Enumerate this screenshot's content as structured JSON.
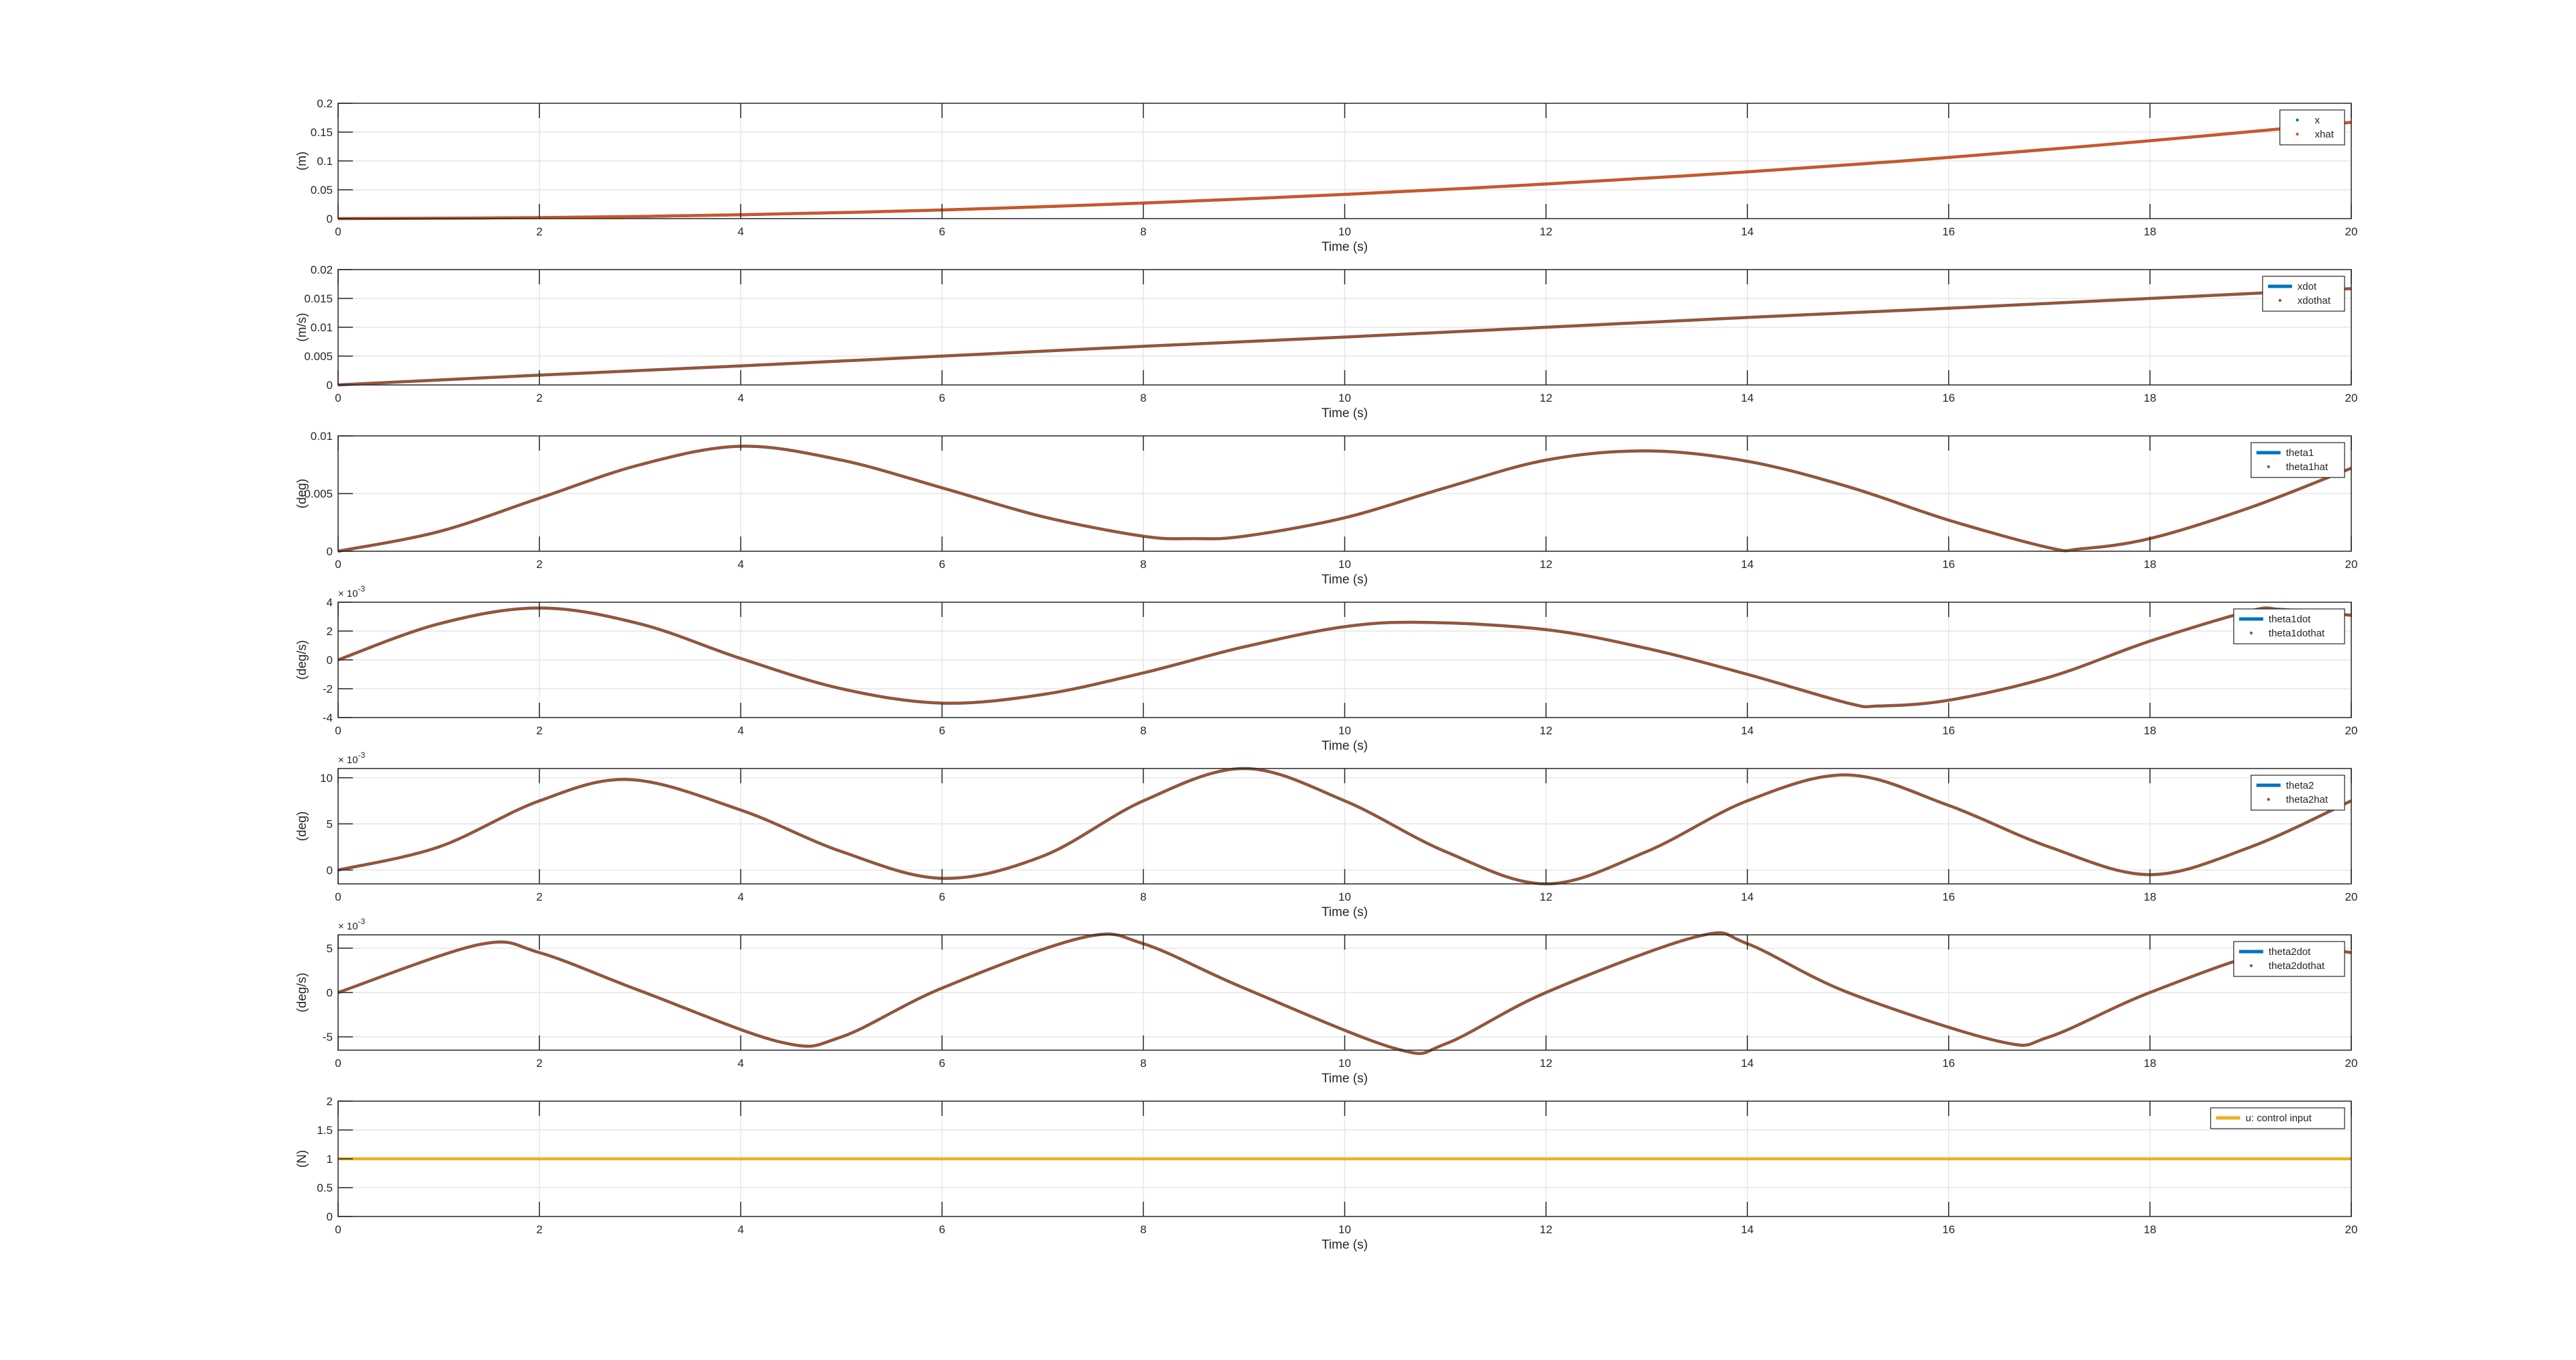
{
  "figure": {
    "background": "#ffffff",
    "grid": true,
    "legend_placement": "top-right"
  },
  "colors": {
    "blue": "#0072BD",
    "orange": "#D95319",
    "yellow": "#EDB120",
    "estimate": "#A0522D"
  },
  "chart_data": [
    {
      "type": "line",
      "xlabel": "Time (s)",
      "ylabel": "(m)",
      "exponent": "",
      "xlim": [
        0,
        20
      ],
      "ylim": [
        0,
        0.2
      ],
      "xticks": [
        "0",
        "2",
        "4",
        "6",
        "8",
        "10",
        "12",
        "14",
        "16",
        "18",
        "20"
      ],
      "yticks": [
        {
          "v": 0,
          "label": "0"
        },
        {
          "v": 0.05,
          "label": "0.05"
        },
        {
          "v": 0.1,
          "label": "0.1"
        },
        {
          "v": 0.15,
          "label": "0.15"
        },
        {
          "v": 0.2,
          "label": "0.2"
        }
      ],
      "x": [
        0,
        2,
        4,
        6,
        8,
        10,
        12,
        14,
        16,
        18,
        20
      ],
      "series": [
        {
          "name": "x",
          "color": "#0072BD",
          "style": "line",
          "values": [
            0,
            0.0017,
            0.0067,
            0.015,
            0.027,
            0.042,
            0.06,
            0.081,
            0.106,
            0.135,
            0.167
          ]
        },
        {
          "name": "xhat",
          "color": "#D95319",
          "style": "line",
          "values": [
            0,
            0.0017,
            0.0067,
            0.015,
            0.027,
            0.042,
            0.06,
            0.081,
            0.106,
            0.135,
            0.167
          ]
        }
      ],
      "legend_marks": [
        "dot",
        "dot"
      ]
    },
    {
      "type": "line",
      "xlabel": "Time (s)",
      "ylabel": "(m/s)",
      "exponent": "",
      "xlim": [
        0,
        20
      ],
      "ylim": [
        0,
        0.02
      ],
      "xticks": [
        "0",
        "2",
        "4",
        "6",
        "8",
        "10",
        "12",
        "14",
        "16",
        "18",
        "20"
      ],
      "yticks": [
        {
          "v": 0,
          "label": "0"
        },
        {
          "v": 0.005,
          "label": "0.005"
        },
        {
          "v": 0.01,
          "label": "0.01"
        },
        {
          "v": 0.015,
          "label": "0.015"
        },
        {
          "v": 0.02,
          "label": "0.02"
        }
      ],
      "x": [
        0,
        2,
        4,
        6,
        8,
        10,
        12,
        14,
        16,
        18,
        20
      ],
      "series": [
        {
          "name": "xdot",
          "color": "#0072BD",
          "style": "line",
          "values": [
            0,
            0.0017,
            0.0033,
            0.005,
            0.0067,
            0.0083,
            0.01,
            0.0117,
            0.0133,
            0.015,
            0.0167
          ]
        },
        {
          "name": "xdothat",
          "color": "#A0522D",
          "style": "line",
          "values": [
            0,
            0.0017,
            0.0033,
            0.005,
            0.0067,
            0.0083,
            0.01,
            0.0117,
            0.0133,
            0.015,
            0.0167
          ]
        }
      ],
      "legend_marks": [
        "line",
        "dot"
      ]
    },
    {
      "type": "line",
      "xlabel": "Time (s)",
      "ylabel": "(deg)",
      "exponent": "",
      "xlim": [
        0,
        20
      ],
      "ylim": [
        0,
        0.01
      ],
      "xticks": [
        "0",
        "2",
        "4",
        "6",
        "8",
        "10",
        "12",
        "14",
        "16",
        "18",
        "20"
      ],
      "yticks": [
        {
          "v": 0,
          "label": "0"
        },
        {
          "v": 0.005,
          "label": "0.005"
        },
        {
          "v": 0.01,
          "label": "0.01"
        }
      ],
      "x": [
        0,
        1,
        2,
        3,
        4,
        5,
        6,
        7,
        8,
        8.5,
        9,
        10,
        11,
        12,
        13,
        14,
        15,
        16,
        17,
        17.3,
        18,
        19,
        20
      ],
      "series": [
        {
          "name": "theta1",
          "color": "#0072BD",
          "style": "line",
          "values": [
            0,
            0.0017,
            0.0046,
            0.0075,
            0.0091,
            0.0079,
            0.0055,
            0.003,
            0.0013,
            0.0011,
            0.0013,
            0.0029,
            0.0055,
            0.0079,
            0.0087,
            0.0078,
            0.0056,
            0.0027,
            0.0003,
            0.0002,
            0.0011,
            0.0038,
            0.0072
          ]
        },
        {
          "name": "theta1hat",
          "color": "#A0522D",
          "style": "line",
          "values": [
            0,
            0.0017,
            0.0046,
            0.0075,
            0.0091,
            0.0079,
            0.0055,
            0.003,
            0.0013,
            0.0011,
            0.0013,
            0.0029,
            0.0055,
            0.0079,
            0.0087,
            0.0078,
            0.0056,
            0.0027,
            0.0003,
            0.0002,
            0.0011,
            0.0038,
            0.0072
          ]
        }
      ],
      "legend_marks": [
        "line",
        "dot"
      ]
    },
    {
      "type": "line",
      "xlabel": "Time (s)",
      "ylabel": "(deg/s)",
      "exponent": "-3",
      "xlim": [
        0,
        20
      ],
      "ylim": [
        -4,
        4
      ],
      "xticks": [
        "0",
        "2",
        "4",
        "6",
        "8",
        "10",
        "12",
        "14",
        "16",
        "18",
        "20"
      ],
      "yticks": [
        {
          "v": -4,
          "label": "-4"
        },
        {
          "v": -2,
          "label": "-2"
        },
        {
          "v": 0,
          "label": "0"
        },
        {
          "v": 2,
          "label": "2"
        },
        {
          "v": 4,
          "label": "4"
        }
      ],
      "x": [
        0,
        1,
        2,
        3,
        4,
        5,
        6,
        7,
        8,
        9,
        10,
        10.8,
        12,
        13,
        14,
        15,
        15.3,
        16,
        17,
        18,
        19,
        19.3,
        20
      ],
      "series": [
        {
          "name": "theta1dot",
          "color": "#0072BD",
          "style": "line",
          "values": [
            0,
            2.5,
            3.6,
            2.5,
            0.1,
            -2.0,
            -3.0,
            -2.4,
            -0.9,
            0.9,
            2.3,
            2.6,
            2.1,
            0.8,
            -1.0,
            -3.0,
            -3.2,
            -2.8,
            -1.2,
            1.3,
            3.4,
            3.5,
            3.1
          ]
        },
        {
          "name": "theta1dothat",
          "color": "#A0522D",
          "style": "line",
          "values": [
            0,
            2.5,
            3.6,
            2.5,
            0.1,
            -2.0,
            -3.0,
            -2.4,
            -0.9,
            0.9,
            2.3,
            2.6,
            2.1,
            0.8,
            -1.0,
            -3.0,
            -3.2,
            -2.8,
            -1.2,
            1.3,
            3.4,
            3.5,
            3.1
          ]
        }
      ],
      "legend_marks": [
        "line",
        "dot"
      ]
    },
    {
      "type": "line",
      "xlabel": "Time (s)",
      "ylabel": "(deg)",
      "exponent": "-3",
      "xlim": [
        0,
        20
      ],
      "ylim": [
        -1.5,
        11
      ],
      "xticks": [
        "0",
        "2",
        "4",
        "6",
        "8",
        "10",
        "12",
        "14",
        "16",
        "18",
        "20"
      ],
      "yticks": [
        {
          "v": 0,
          "label": "0"
        },
        {
          "v": 5,
          "label": "5"
        },
        {
          "v": 10,
          "label": "10"
        }
      ],
      "x": [
        0,
        1,
        2,
        2.9,
        4,
        5,
        6,
        7,
        8,
        9,
        10,
        11,
        12,
        13,
        14,
        15,
        16,
        17,
        18,
        19,
        20
      ],
      "series": [
        {
          "name": "theta2",
          "color": "#0072BD",
          "style": "line",
          "values": [
            0,
            2.5,
            7.5,
            9.8,
            6.5,
            2.0,
            -0.9,
            1.5,
            7.5,
            11.0,
            7.5,
            2.0,
            -1.5,
            2.0,
            7.5,
            10.3,
            7.0,
            2.5,
            -0.5,
            2.5,
            7.5
          ]
        },
        {
          "name": "theta2hat",
          "color": "#A0522D",
          "style": "line",
          "values": [
            0,
            2.5,
            7.5,
            9.8,
            6.5,
            2.0,
            -0.9,
            1.5,
            7.5,
            11.0,
            7.5,
            2.0,
            -1.5,
            2.0,
            7.5,
            10.3,
            7.0,
            2.5,
            -0.5,
            2.5,
            7.5
          ]
        }
      ],
      "legend_marks": [
        "line",
        "dot"
      ]
    },
    {
      "type": "line",
      "xlabel": "Time (s)",
      "ylabel": "(deg/s)",
      "exponent": "-3",
      "xlim": [
        0,
        20
      ],
      "ylim": [
        -6.5,
        6.5
      ],
      "xticks": [
        "0",
        "2",
        "4",
        "6",
        "8",
        "10",
        "12",
        "14",
        "16",
        "18",
        "20"
      ],
      "yticks": [
        {
          "v": -5,
          "label": "-5"
        },
        {
          "v": 0,
          "label": "0"
        },
        {
          "v": 5,
          "label": "5"
        }
      ],
      "x": [
        0,
        1.4,
        2,
        3,
        4.4,
        5,
        6,
        7.4,
        8,
        9,
        10.5,
        11,
        12,
        13.5,
        14,
        15,
        16.5,
        17,
        18,
        19.3,
        20
      ],
      "series": [
        {
          "name": "theta2dot",
          "color": "#0072BD",
          "style": "line",
          "values": [
            0,
            5.4,
            4.5,
            0.2,
            -5.6,
            -5.0,
            0.5,
            6.2,
            5.5,
            0.5,
            -6.3,
            -5.8,
            0,
            6.3,
            5.5,
            0,
            -5.5,
            -5.0,
            0,
            5.0,
            4.5
          ]
        },
        {
          "name": "theta2dothat",
          "color": "#A0522D",
          "style": "line",
          "values": [
            0,
            5.4,
            4.5,
            0.2,
            -5.6,
            -5.0,
            0.5,
            6.2,
            5.5,
            0.5,
            -6.3,
            -5.8,
            0,
            6.3,
            5.5,
            0,
            -5.5,
            -5.0,
            0,
            5.0,
            4.5
          ]
        }
      ],
      "legend_marks": [
        "line",
        "dot"
      ]
    },
    {
      "type": "line",
      "xlabel": "Time (s)",
      "ylabel": "(N)",
      "exponent": "",
      "xlim": [
        0,
        20
      ],
      "ylim": [
        0,
        2
      ],
      "xticks": [
        "0",
        "2",
        "4",
        "6",
        "8",
        "10",
        "12",
        "14",
        "16",
        "18",
        "20"
      ],
      "yticks": [
        {
          "v": 0,
          "label": "0"
        },
        {
          "v": 0.5,
          "label": "0.5"
        },
        {
          "v": 1,
          "label": "1"
        },
        {
          "v": 1.5,
          "label": "1.5"
        },
        {
          "v": 2,
          "label": "2"
        }
      ],
      "x": [
        0,
        20
      ],
      "series": [
        {
          "name": "u: control input",
          "color": "#EDB120",
          "style": "line",
          "values": [
            1,
            1
          ]
        }
      ],
      "legend_marks": [
        "line"
      ]
    }
  ]
}
